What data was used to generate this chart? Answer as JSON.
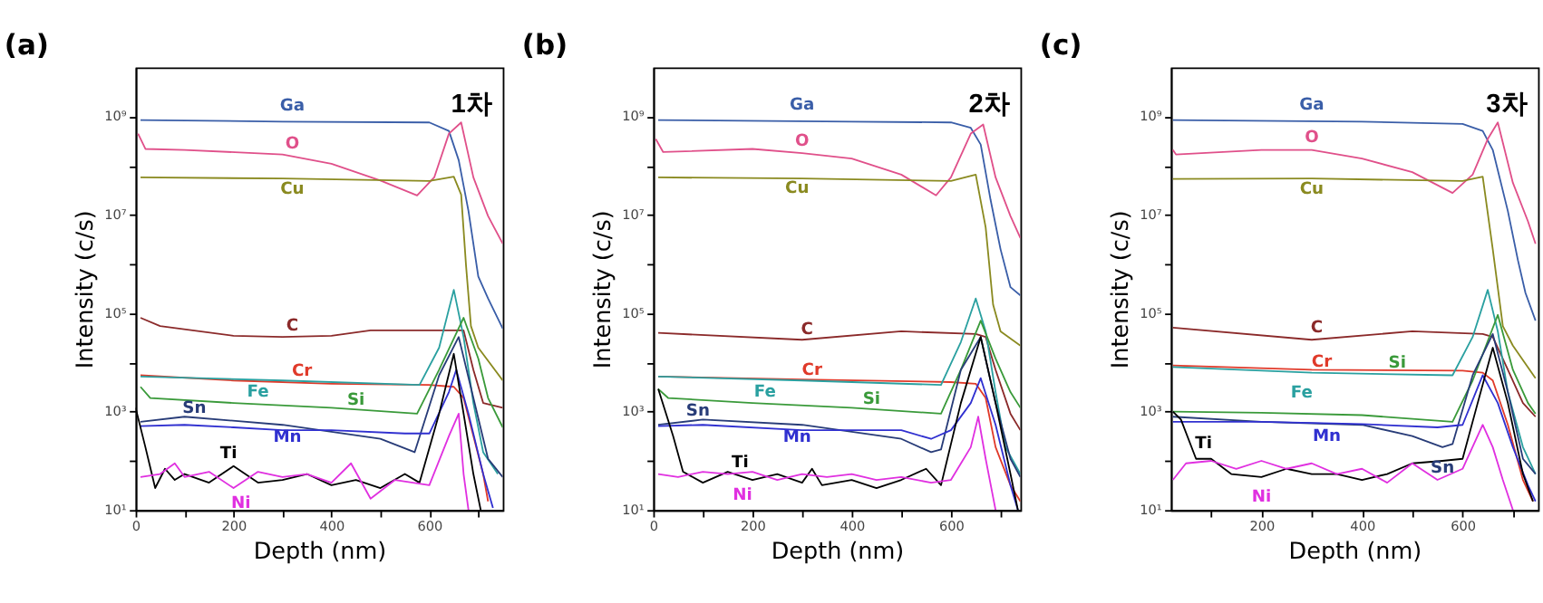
{
  "chart_data": [
    {
      "type": "line",
      "title": "(a)",
      "annotations": [
        "1차"
      ],
      "xlabel": "Depth (nm)",
      "ylabel": "Intensity (c/s)",
      "log": "y",
      "xlim": [
        0,
        750
      ],
      "xticks": [
        0,
        {
          "value": 100,
          "label": null
        },
        200,
        {
          "value": 300,
          "label": null
        },
        400,
        {
          "value": 500,
          "label": null
        },
        600,
        {
          "value": 700,
          "label": null
        }
      ],
      "ylim": [
        10,
        10000000000.0
      ],
      "yticks": [
        {
          "value": 10,
          "label": "10¹"
        },
        {
          "value": 100,
          "label": null
        },
        {
          "value": 1000,
          "label": "10³"
        },
        {
          "value": 10000,
          "label": null
        },
        {
          "value": 100000,
          "label": "10⁵"
        },
        {
          "value": 1000000,
          "label": null
        },
        {
          "value": 10000000,
          "label": "10⁷"
        },
        {
          "value": 100000000,
          "label": null
        },
        {
          "value": 1000000000,
          "label": "10⁹"
        }
      ],
      "series": [
        {
          "name": "Ga",
          "color": "#3a5ea8",
          "x": [
            10,
            300,
            600,
            640,
            660,
            680,
            700,
            720,
            750
          ],
          "values": [
            850000000.0,
            790000000.0,
            760000000.0,
            510000000.0,
            130000000.0,
            12000000.0,
            560000.0,
            200000.0,
            49000.0
          ]
        },
        {
          "name": "O",
          "color": "#e0508a",
          "x": [
            5,
            20,
            100,
            300,
            400,
            500,
            575,
            610,
            640,
            665,
            690,
            720,
            750
          ],
          "values": [
            450000000.0,
            220000000.0,
            210000000.0,
            170000000.0,
            110000000.0,
            50000000.0,
            25000000.0,
            58000000.0,
            450000000.0,
            760000000.0,
            58000000.0,
            9500000.0,
            2600000.0
          ]
        },
        {
          "name": "Cu",
          "color": "#8a8a20",
          "x": [
            10,
            300,
            600,
            650,
            665,
            675,
            685,
            700,
            750
          ],
          "values": [
            58000000.0,
            55000000.0,
            49000000.0,
            60000000.0,
            26000000.0,
            930000.0,
            55000.0,
            20000.0,
            4300
          ]
        },
        {
          "name": "C",
          "color": "#8b2a2a",
          "x": [
            10,
            50,
            200,
            300,
            400,
            480,
            600,
            670,
            690,
            710,
            750
          ],
          "values": [
            81000.0,
            55000.0,
            35000.0,
            33000.0,
            35000.0,
            45000.0,
            45000.0,
            45000.0,
            7100,
            1500,
            1200
          ]
        },
        {
          "name": "Cr",
          "color": "#e03a2a",
          "x": [
            10,
            200,
            400,
            600,
            650,
            670,
            690,
            710,
            720
          ],
          "values": [
            5500,
            4300,
            3700,
            3500,
            3200,
            1900,
            320,
            54,
            15
          ]
        },
        {
          "name": "Fe",
          "color": "#2aa0a0",
          "x": [
            10,
            300,
            580,
            620,
            650,
            670,
            690,
            710,
            740
          ],
          "values": [
            5200,
            4300,
            3500,
            20000.0,
            300000.0,
            33000.0,
            1500,
            150,
            54
          ]
        },
        {
          "name": "Si",
          "color": "#3a9a3a",
          "x": [
            10,
            30,
            200,
            400,
            575,
            620,
            670,
            700,
            720,
            750
          ],
          "values": [
            3200,
            1900,
            1500,
            1200,
            910,
            7100,
            81000.0,
            12000.0,
            1900,
            480
          ]
        },
        {
          "name": "Sn",
          "color": "#283c78",
          "x": [
            10,
            100,
            300,
            500,
            570,
            620,
            660,
            690,
            720,
            750
          ],
          "values": [
            620,
            790,
            540,
            280,
            150,
            5500,
            33000.0,
            1900,
            110,
            47
          ]
        },
        {
          "name": "Mn",
          "color": "#3030d0",
          "x": [
            10,
            100,
            200,
            300,
            400,
            550,
            600,
            640,
            655,
            680,
            710,
            730
          ],
          "values": [
            510,
            540,
            480,
            420,
            420,
            360,
            360,
            2500,
            7100,
            910,
            54,
            11
          ]
        },
        {
          "name": "Ti",
          "color": "#000000",
          "x": [
            0,
            20,
            40,
            60,
            80,
            100,
            150,
            200,
            250,
            300,
            350,
            400,
            450,
            500,
            550,
            580,
            620,
            650,
            670,
            690,
            705
          ],
          "values": [
            1200,
            190,
            28,
            69,
            41,
            54,
            36,
            78,
            36,
            41,
            54,
            32,
            41,
            28,
            54,
            36,
            910,
            15000.0,
            910,
            54,
            10
          ]
        },
        {
          "name": "Ni",
          "color": "#e030e0",
          "x": [
            10,
            50,
            80,
            100,
            150,
            200,
            250,
            300,
            350,
            400,
            440,
            480,
            530,
            600,
            640,
            660,
            670,
            680
          ],
          "values": [
            47,
            54,
            89,
            47,
            60,
            28,
            60,
            47,
            54,
            36,
            89,
            17,
            41,
            32,
            320,
            910,
            54,
            10
          ]
        }
      ]
    },
    {
      "type": "line",
      "title": "(b)",
      "annotations": [
        "2차"
      ],
      "xlabel": "Depth (nm)",
      "ylabel": "Intensity (c/s)",
      "log": "y",
      "xlim": [
        0,
        740
      ],
      "xticks": [
        0,
        {
          "value": 100,
          "label": null
        },
        200,
        {
          "value": 300,
          "label": null
        },
        400,
        {
          "value": 500,
          "label": null
        },
        600,
        {
          "value": 700,
          "label": null
        }
      ],
      "ylim": [
        10,
        10000000000.0
      ],
      "yticks": [
        {
          "value": 10,
          "label": "10¹"
        },
        {
          "value": 100,
          "label": null
        },
        {
          "value": 1000,
          "label": "10³"
        },
        {
          "value": 10000,
          "label": null
        },
        {
          "value": 100000,
          "label": "10⁵"
        },
        {
          "value": 1000000,
          "label": null
        },
        {
          "value": 10000000,
          "label": "10⁷"
        },
        {
          "value": 100000000,
          "label": null
        },
        {
          "value": 1000000000,
          "label": "10⁹"
        }
      ],
      "series": [
        {
          "name": "Ga",
          "color": "#3a5ea8",
          "x": [
            10,
            400,
            600,
            640,
            660,
            680,
            700,
            720,
            740
          ],
          "values": [
            850000000.0,
            790000000.0,
            760000000.0,
            590000000.0,
            270000000.0,
            20000000.0,
            2000000.0,
            340000.0,
            230000.0
          ]
        },
        {
          "name": "O",
          "color": "#e0508a",
          "x": [
            5,
            20,
            200,
            300,
            400,
            500,
            570,
            600,
            640,
            665,
            690,
            720,
            740
          ],
          "values": [
            350000000.0,
            190000000.0,
            220000000.0,
            180000000.0,
            140000000.0,
            66000000.0,
            25000000.0,
            58000000.0,
            450000000.0,
            690000000.0,
            58000000.0,
            9500000.0,
            3400000.0
          ]
        },
        {
          "name": "Cu",
          "color": "#8a8a20",
          "x": [
            10,
            300,
            600,
            650,
            670,
            685,
            700,
            740
          ],
          "values": [
            58000000.0,
            55000000.0,
            49000000.0,
            66000000.0,
            5600000.0,
            150000.0,
            43000.0,
            22000.0
          ]
        },
        {
          "name": "C",
          "color": "#8b2a2a",
          "x": [
            10,
            300,
            500,
            650,
            670,
            690,
            720,
            740
          ],
          "values": [
            40000.0,
            29000.0,
            43000.0,
            38000.0,
            33000.0,
            7100,
            910,
            420
          ]
        },
        {
          "name": "Cr",
          "color": "#e03a2a",
          "x": [
            10,
            300,
            600,
            650,
            670,
            690,
            720,
            740
          ],
          "values": [
            5200,
            4500,
            4000,
            3700,
            1900,
            190,
            32,
            15
          ]
        },
        {
          "name": "Fe",
          "color": "#2aa0a0",
          "x": [
            10,
            300,
            580,
            620,
            650,
            670,
            690,
            710,
            740
          ],
          "values": [
            5200,
            4300,
            3500,
            26000.0,
            200000.0,
            43000.0,
            2500,
            190,
            54
          ]
        },
        {
          "name": "Si",
          "color": "#3a9a3a",
          "x": [
            10,
            30,
            200,
            400,
            580,
            620,
            660,
            690,
            720,
            740
          ],
          "values": [
            2900,
            1900,
            1500,
            1200,
            910,
            7100,
            71000.0,
            12000.0,
            2500,
            1200
          ]
        },
        {
          "name": "Sn",
          "color": "#283c78",
          "x": [
            10,
            100,
            300,
            500,
            560,
            580,
            620,
            660,
            690,
            720,
            740
          ],
          "values": [
            540,
            690,
            540,
            280,
            150,
            170,
            7100,
            33000.0,
            1500,
            110,
            47
          ]
        },
        {
          "name": "Mn",
          "color": "#3030d0",
          "x": [
            10,
            100,
            300,
            500,
            560,
            600,
            640,
            660,
            690,
            720,
            735
          ],
          "values": [
            510,
            540,
            420,
            420,
            280,
            420,
            1500,
            4800,
            540,
            32,
            10
          ]
        },
        {
          "name": "Ti",
          "color": "#000000",
          "x": [
            10,
            40,
            60,
            100,
            150,
            200,
            250,
            300,
            320,
            340,
            400,
            450,
            500,
            550,
            580,
            620,
            660,
            690,
            720,
            735
          ],
          "values": [
            2900,
            320,
            60,
            36,
            60,
            41,
            54,
            36,
            69,
            32,
            41,
            28,
            41,
            69,
            32,
            1500,
            33000.0,
            1500,
            54,
            10
          ]
        },
        {
          "name": "Ni",
          "color": "#e030e0",
          "x": [
            10,
            50,
            100,
            150,
            200,
            250,
            300,
            350,
            400,
            450,
            500,
            560,
            600,
            640,
            655,
            670,
            690
          ],
          "values": [
            54,
            47,
            60,
            54,
            60,
            41,
            54,
            47,
            54,
            41,
            47,
            36,
            41,
            190,
            790,
            110,
            10
          ]
        }
      ]
    },
    {
      "type": "line",
      "title": "(c)",
      "annotations": [
        "3차"
      ],
      "xlabel": "Depth (nm)",
      "ylabel": "Intensity (c/s)",
      "log": "y",
      "xlim": [
        20,
        750
      ],
      "xticks": [
        {
          "value": 100,
          "label": null
        },
        200,
        {
          "value": 300,
          "label": null
        },
        400,
        {
          "value": 500,
          "label": null
        },
        600,
        {
          "value": 700,
          "label": null
        }
      ],
      "ylim": [
        10,
        10000000000.0
      ],
      "yticks": [
        {
          "value": 10,
          "label": "10¹"
        },
        {
          "value": 100,
          "label": null
        },
        {
          "value": 1000,
          "label": "10³"
        },
        {
          "value": 10000,
          "label": null
        },
        {
          "value": 100000,
          "label": "10⁵"
        },
        {
          "value": 1000000,
          "label": null
        },
        {
          "value": 10000000,
          "label": "10⁷"
        },
        {
          "value": 100000000,
          "label": null
        },
        {
          "value": 1000000000,
          "label": "10⁹"
        }
      ],
      "series": [
        {
          "name": "Ga",
          "color": "#3a5ea8",
          "x": [
            24,
            400,
            600,
            640,
            660,
            690,
            710,
            725,
            745
          ],
          "values": [
            850000000.0,
            790000000.0,
            710000000.0,
            510000000.0,
            210000000.0,
            12000000.0,
            1200000.0,
            260000.0,
            71000.0
          ]
        },
        {
          "name": "O",
          "color": "#e0508a",
          "x": [
            24,
            30,
            200,
            300,
            400,
            500,
            580,
            620,
            650,
            670,
            700,
            730,
            745
          ],
          "values": [
            210000000.0,
            170000000.0,
            210000000.0,
            210000000.0,
            140000000.0,
            74000000.0,
            28000000.0,
            66000000.0,
            350000000.0,
            760000000.0,
            45000000.0,
            7400000.0,
            2600000.0
          ]
        },
        {
          "name": "Cu",
          "color": "#8a8a20",
          "x": [
            24,
            300,
            600,
            640,
            660,
            680,
            700,
            745
          ],
          "values": [
            54000000.0,
            55000000.0,
            49000000.0,
            60000000.0,
            2000000.0,
            55000.0,
            22000.0,
            4800
          ]
        },
        {
          "name": "C",
          "color": "#8b2a2a",
          "x": [
            24,
            300,
            500,
            640,
            660,
            690,
            720,
            745
          ],
          "values": [
            51000.0,
            29000.0,
            43000.0,
            38000.0,
            33000.0,
            7100,
            1500,
            790
          ]
        },
        {
          "name": "Cr",
          "color": "#e03a2a",
          "x": [
            24,
            300,
            600,
            640,
            660,
            690,
            720,
            740
          ],
          "values": [
            8700,
            7100,
            6800,
            6200,
            4300,
            540,
            41,
            15
          ]
        },
        {
          "name": "Fe",
          "color": "#2aa0a0",
          "x": [
            24,
            300,
            580,
            620,
            650,
            670,
            690,
            720,
            745
          ],
          "values": [
            8100,
            6200,
            5500,
            33000.0,
            300000.0,
            43000.0,
            2500,
            190,
            54
          ]
        },
        {
          "name": "Si",
          "color": "#3a9a3a",
          "x": [
            24,
            200,
            400,
            580,
            620,
            670,
            700,
            730,
            745
          ],
          "values": [
            1000,
            950,
            850,
            620,
            4300,
            93000.0,
            7100,
            1500,
            910
          ]
        },
        {
          "name": "Sn",
          "color": "#283c78",
          "x": [
            24,
            200,
            400,
            500,
            560,
            580,
            620,
            660,
            690,
            720,
            745
          ],
          "values": [
            790,
            620,
            540,
            320,
            190,
            220,
            5500,
            38000.0,
            2500,
            110,
            54
          ]
        },
        {
          "name": "Mn",
          "color": "#3030d0",
          "x": [
            24,
            200,
            400,
            550,
            600,
            640,
            670,
            700,
            730,
            745
          ],
          "values": [
            620,
            620,
            560,
            480,
            540,
            5500,
            1500,
            190,
            32,
            15
          ]
        },
        {
          "name": "Ti",
          "color": "#000000",
          "x": [
            24,
            40,
            70,
            100,
            140,
            200,
            250,
            300,
            350,
            400,
            450,
            500,
            560,
            600,
            630,
            660,
            690,
            720,
            740
          ],
          "values": [
            1000,
            690,
            110,
            110,
            54,
            47,
            69,
            54,
            54,
            41,
            54,
            89,
            100,
            110,
            1500,
            20000.0,
            1500,
            54,
            15
          ]
        },
        {
          "name": "Ni",
          "color": "#e030e0",
          "x": [
            24,
            50,
            100,
            150,
            200,
            250,
            300,
            350,
            400,
            450,
            500,
            550,
            600,
            640,
            660,
            680,
            700
          ],
          "values": [
            41,
            89,
            100,
            69,
            100,
            69,
            89,
            54,
            69,
            36,
            89,
            41,
            69,
            540,
            190,
            41,
            10
          ]
        }
      ]
    }
  ]
}
